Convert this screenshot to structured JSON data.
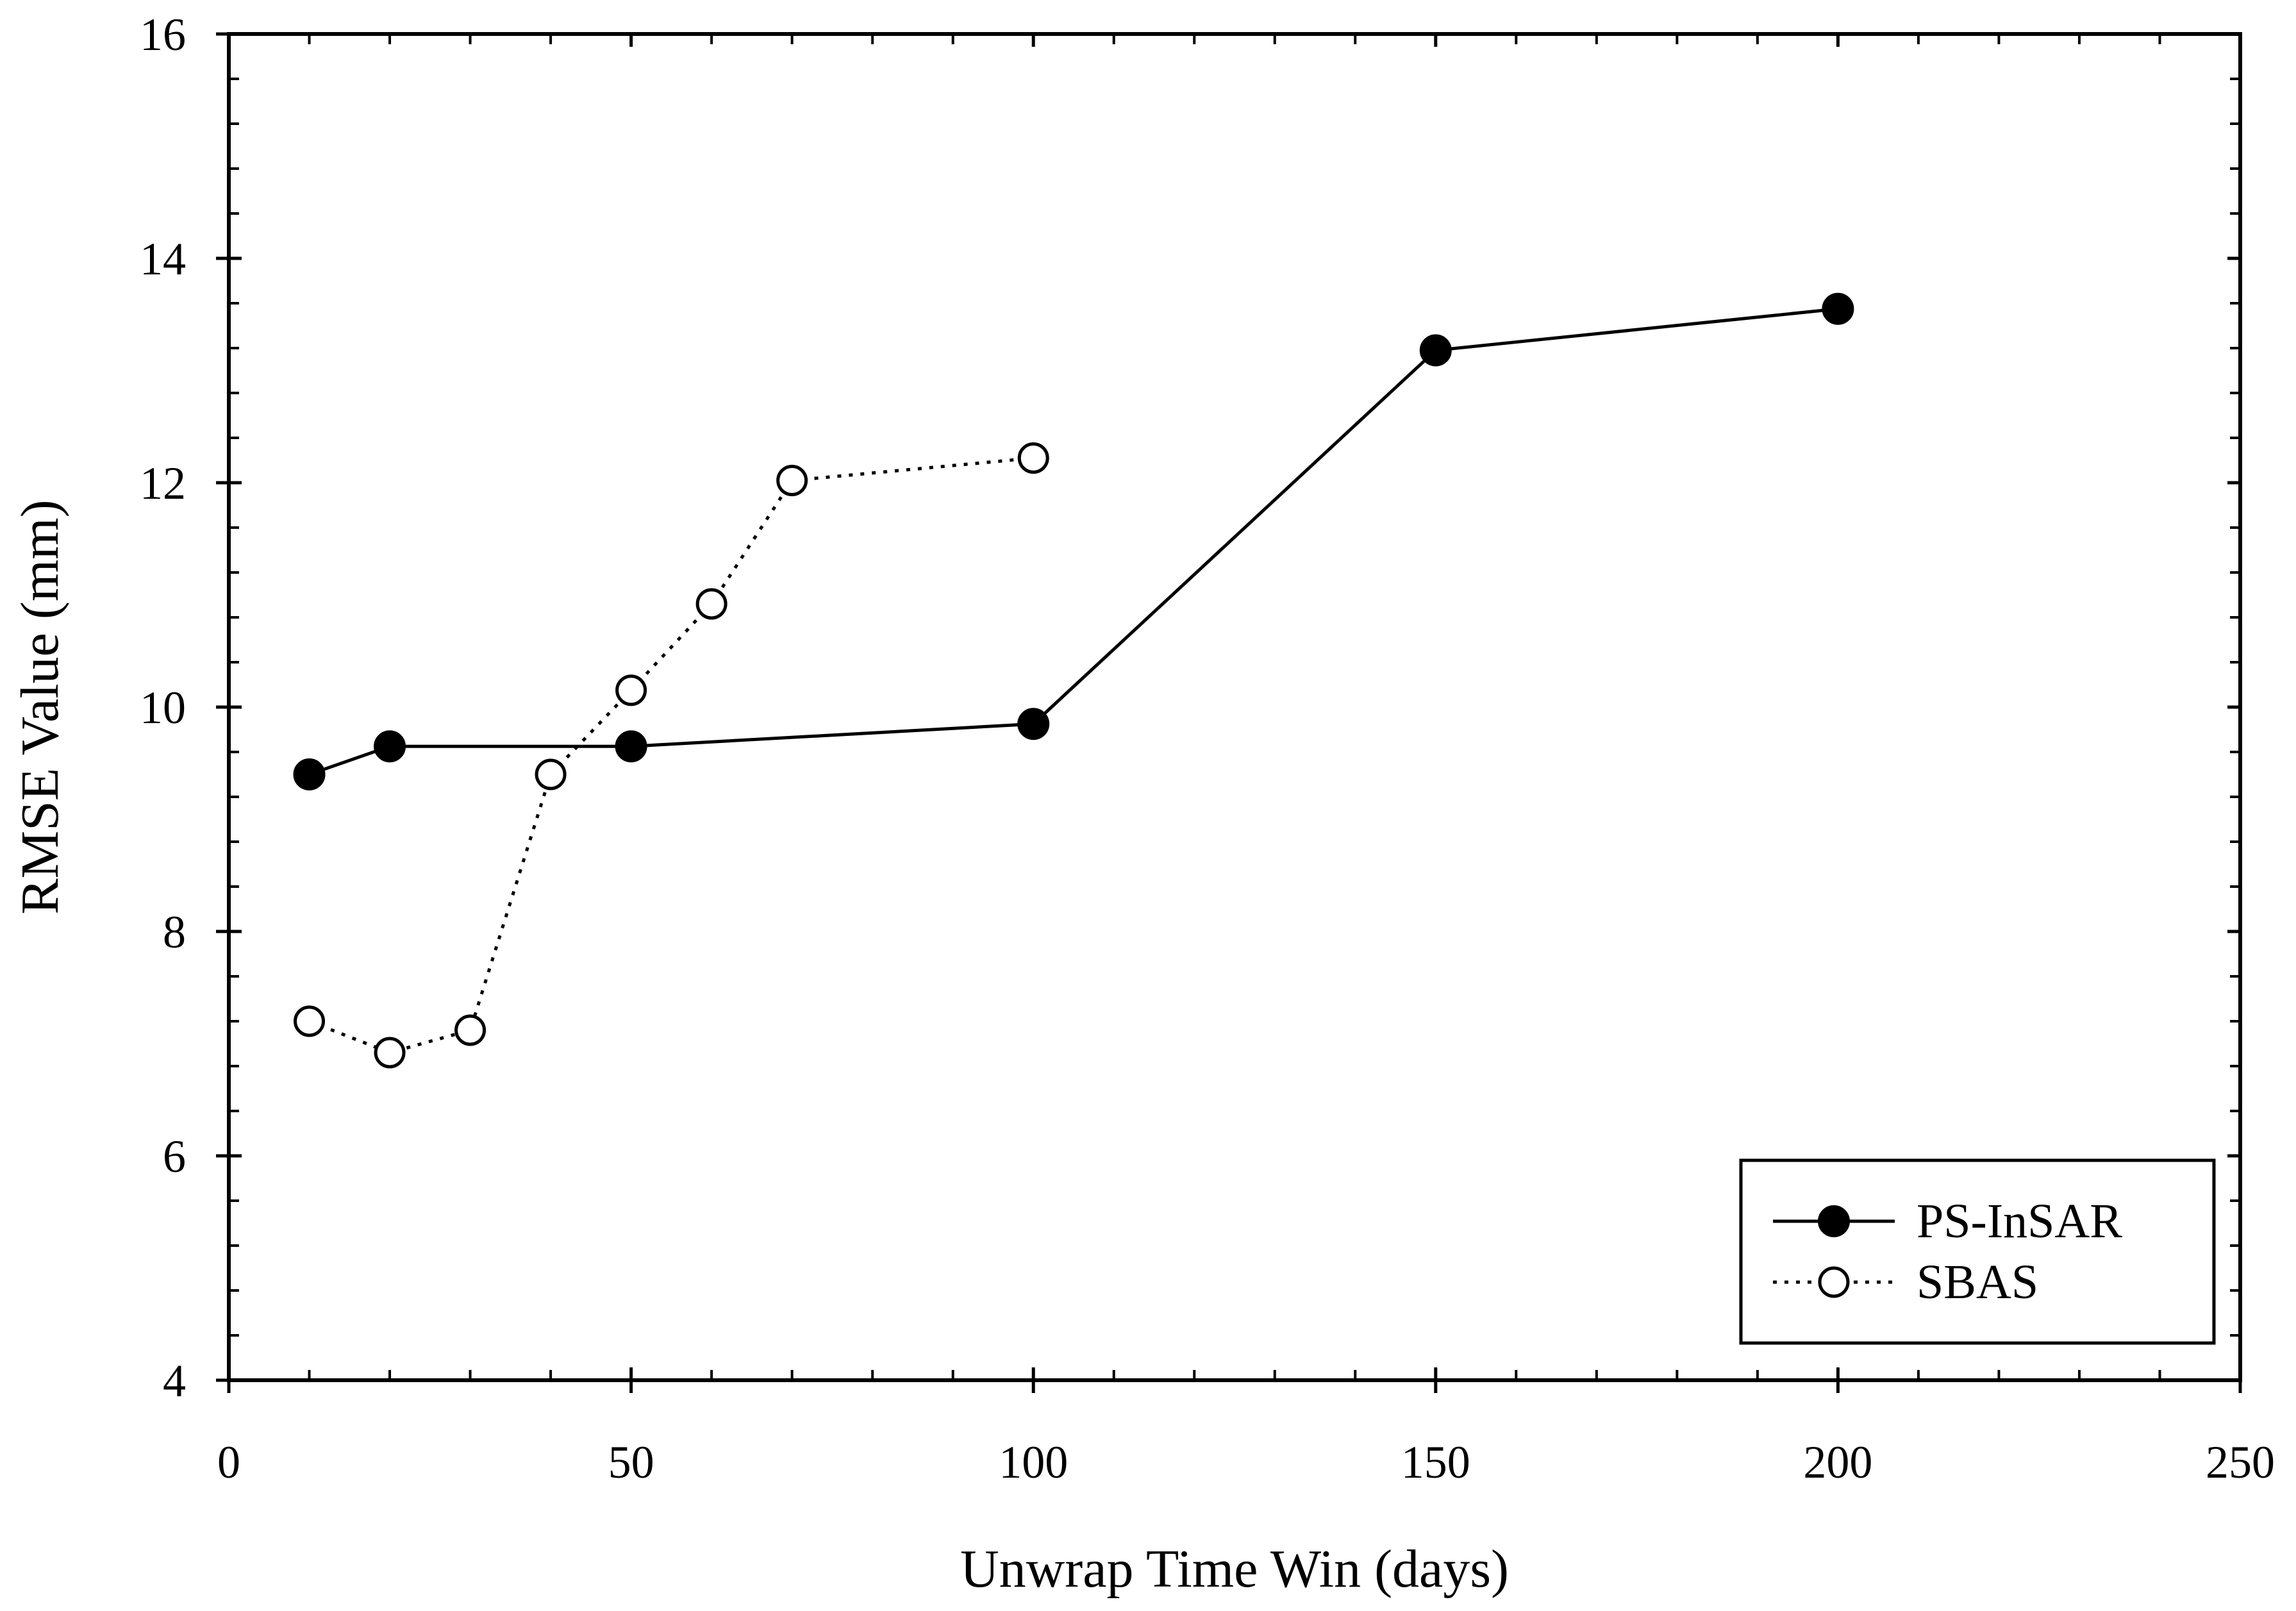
{
  "chart_data": {
    "type": "line",
    "title": "",
    "xlabel": "Unwrap Time Win (days)",
    "ylabel": "RMSE Value (mm)",
    "xlim": [
      0,
      250
    ],
    "ylim": [
      4,
      16
    ],
    "x_ticks": [
      0,
      50,
      100,
      150,
      200,
      250
    ],
    "x_minor_step": 10,
    "y_ticks": [
      4,
      6,
      8,
      10,
      12,
      14,
      16
    ],
    "y_minor_step": 0.4,
    "grid": false,
    "legend_position": "bottom-right",
    "series": [
      {
        "name": "PS-InSAR",
        "marker": "filled-circle",
        "line_style": "solid",
        "color": "#000000",
        "x": [
          10,
          20,
          50,
          100,
          150,
          200
        ],
        "y": [
          9.4,
          9.65,
          9.65,
          9.85,
          13.18,
          13.55
        ]
      },
      {
        "name": "SBAS",
        "marker": "open-circle",
        "line_style": "dotted",
        "color": "#000000",
        "x": [
          10,
          20,
          30,
          40,
          50,
          60,
          70,
          100
        ],
        "y": [
          7.2,
          6.92,
          7.12,
          9.4,
          10.15,
          10.92,
          12.02,
          12.22
        ]
      }
    ]
  }
}
